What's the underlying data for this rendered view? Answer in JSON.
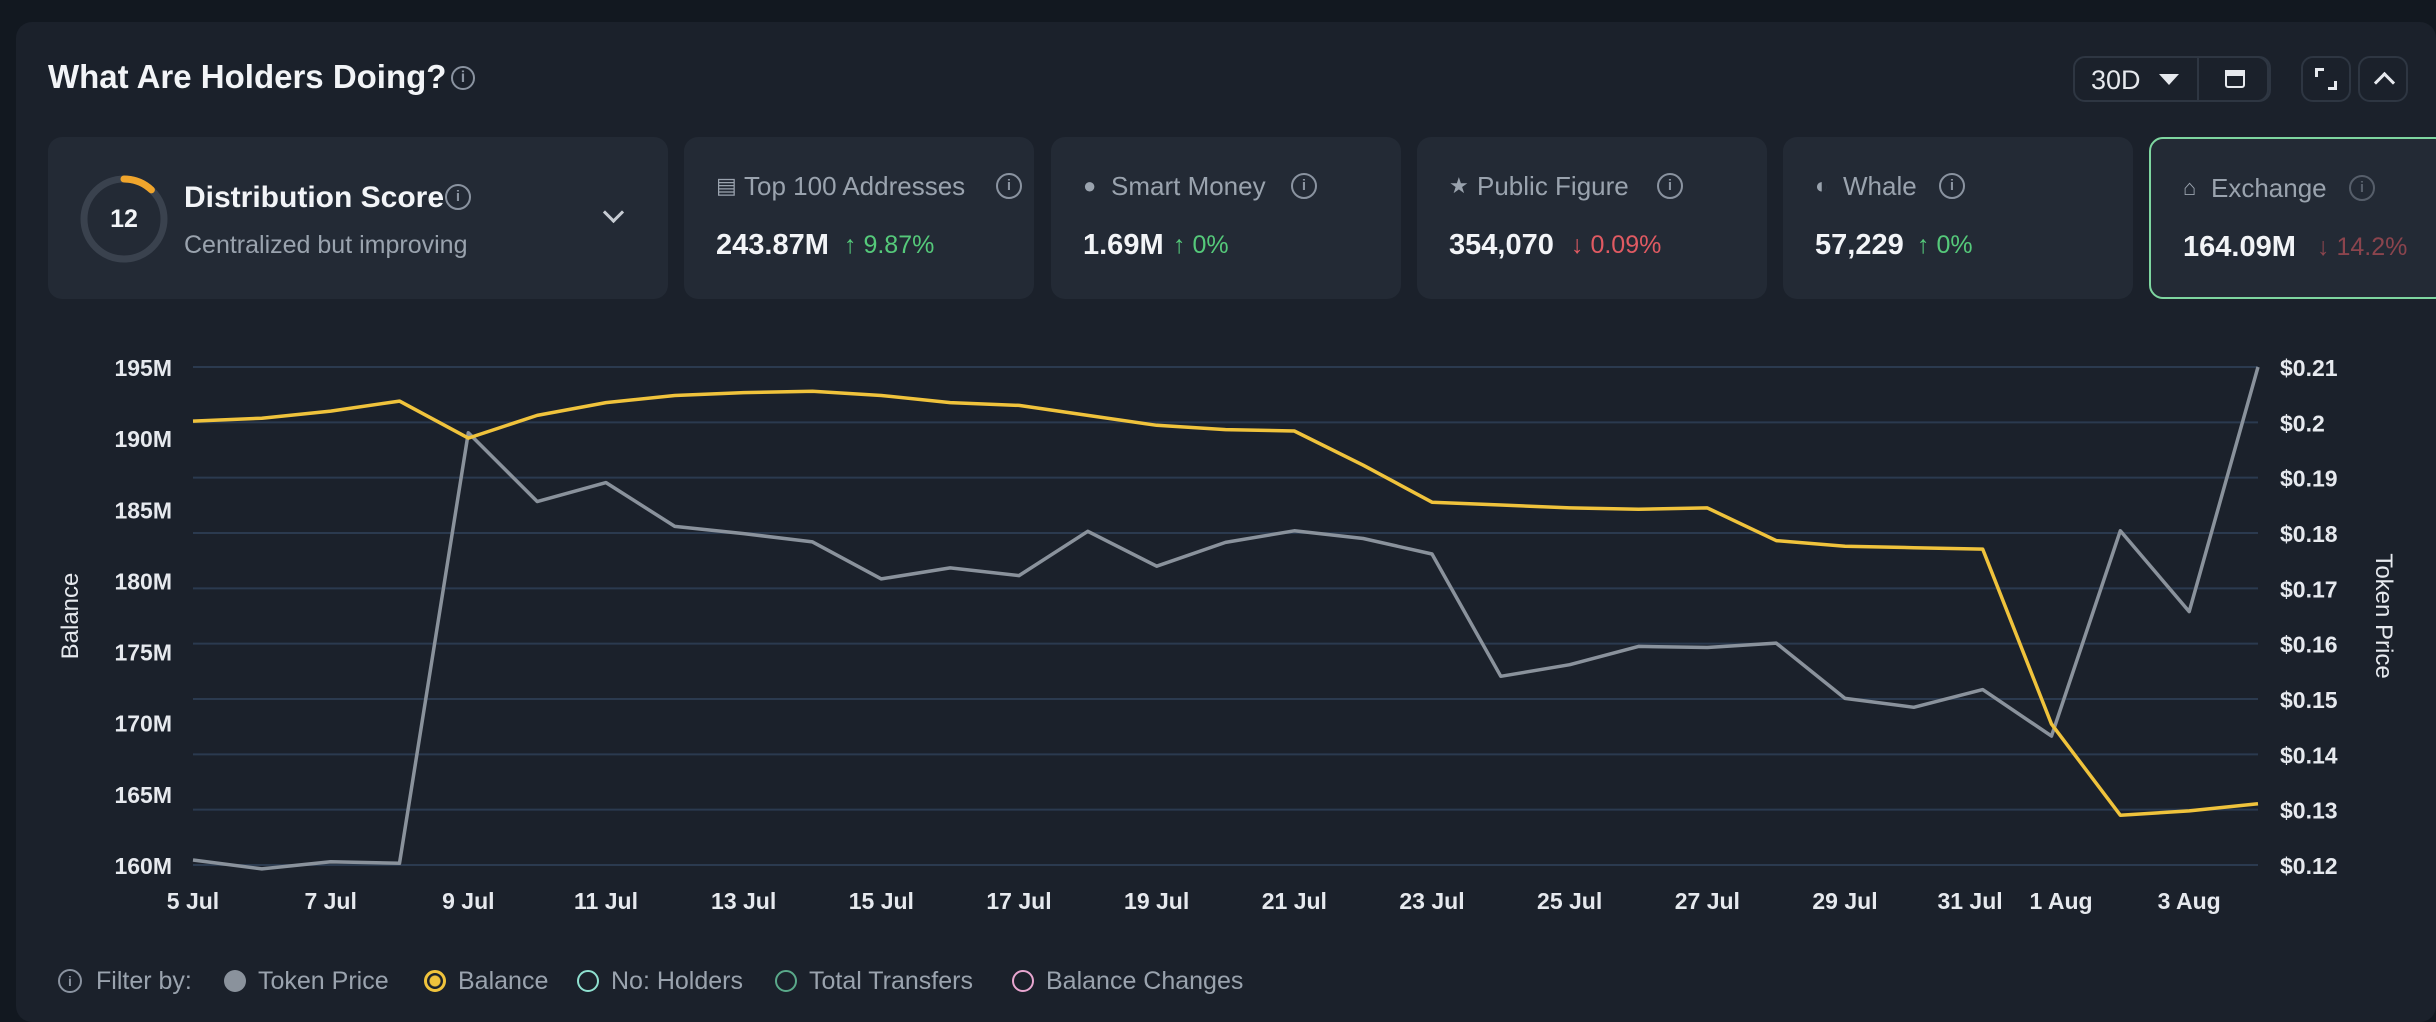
{
  "header": {
    "title": "What Are Holders Doing?",
    "range": "30D"
  },
  "score_card": {
    "score": "12",
    "title": "Distribution Score",
    "subtitle": "Centralized but improving",
    "score_fraction": 0.12
  },
  "metrics": [
    {
      "label": "Top 100 Addresses",
      "value": "243.87M",
      "change": "9.87%",
      "direction": "up",
      "icon": "wallet-icon"
    },
    {
      "label": "Smart Money",
      "value": "1.69M",
      "change": "0%",
      "direction": "up",
      "icon": "smart-money-icon"
    },
    {
      "label": "Public Figure",
      "value": "354,070",
      "change": "0.09%",
      "direction": "down",
      "icon": "public-figure-icon"
    },
    {
      "label": "Whale",
      "value": "57,229",
      "change": "0%",
      "direction": "up",
      "icon": "whale-icon"
    },
    {
      "label": "Exchange",
      "value": "164.09M",
      "change": "14.2%",
      "direction": "down",
      "icon": "bank-icon"
    }
  ],
  "legend": {
    "filter_label": "Filter by:",
    "items": [
      {
        "label": "Token Price",
        "state": "on",
        "color": "#8a929c"
      },
      {
        "label": "Balance",
        "state": "selected",
        "color": "#f0c33c"
      },
      {
        "label": "No: Holders",
        "state": "off",
        "color": "#8fe0d0"
      },
      {
        "label": "Total Transfers",
        "state": "off",
        "color": "#5aa98a"
      },
      {
        "label": "Balance Changes",
        "state": "off",
        "color": "#e8a6d0"
      }
    ]
  },
  "chart_data": {
    "type": "line",
    "xlabel": "",
    "ylabel": "Balance",
    "y2label": "Token Price",
    "x_tick_labels": [
      "5 Jul",
      "7 Jul",
      "9 Jul",
      "11 Jul",
      "13 Jul",
      "15 Jul",
      "17 Jul",
      "19 Jul",
      "21 Jul",
      "23 Jul",
      "25 Jul",
      "27 Jul",
      "29 Jul",
      "31 Jul",
      "1 Aug",
      "3 Aug"
    ],
    "x_tick_index": [
      0,
      2,
      4,
      6,
      8,
      10,
      12,
      14,
      16,
      18,
      20,
      22,
      24,
      26,
      27,
      29
    ],
    "x": [
      "5 Jul",
      "6 Jul",
      "7 Jul",
      "8 Jul",
      "9 Jul",
      "10 Jul",
      "11 Jul",
      "12 Jul",
      "13 Jul",
      "14 Jul",
      "15 Jul",
      "16 Jul",
      "17 Jul",
      "18 Jul",
      "19 Jul",
      "20 Jul",
      "21 Jul",
      "22 Jul",
      "23 Jul",
      "24 Jul",
      "25 Jul",
      "26 Jul",
      "27 Jul",
      "28 Jul",
      "29 Jul",
      "30 Jul",
      "31 Jul",
      "1 Aug",
      "2 Aug",
      "3 Aug",
      "4 Aug"
    ],
    "ylim": [
      160,
      195
    ],
    "yticks": [
      "160M",
      "165M",
      "170M",
      "175M",
      "180M",
      "185M",
      "190M",
      "195M"
    ],
    "y2lim": [
      0.12,
      0.21
    ],
    "y2ticks": [
      "$0.12",
      "$0.13",
      "$0.14",
      "$0.15",
      "$0.16",
      "$0.17",
      "$0.18",
      "$0.19",
      "$0.2",
      "$0.21"
    ],
    "grid": true,
    "series": [
      {
        "name": "Balance",
        "axis": "left",
        "color": "#f0c33c",
        "values": [
          191.2,
          191.4,
          191.9,
          192.6,
          190.0,
          191.6,
          192.5,
          193.0,
          193.2,
          193.3,
          193.0,
          192.5,
          192.3,
          191.6,
          190.9,
          190.6,
          190.5,
          188.1,
          185.5,
          185.3,
          185.1,
          185.0,
          185.1,
          182.8,
          182.4,
          182.3,
          182.2,
          169.9,
          163.5,
          163.8,
          164.3
        ]
      },
      {
        "name": "Token Price",
        "axis": "right",
        "color": "#8a929c",
        "values": [
          0.1209,
          0.1193,
          0.1206,
          0.1203,
          0.1981,
          0.1857,
          0.1891,
          0.1812,
          0.1799,
          0.1784,
          0.1717,
          0.1737,
          0.1723,
          0.1803,
          0.174,
          0.1783,
          0.1804,
          0.179,
          0.1762,
          0.1541,
          0.1562,
          0.1595,
          0.1593,
          0.1601,
          0.1501,
          0.1485,
          0.1517,
          0.1433,
          0.1804,
          0.1658,
          0.21
        ]
      }
    ]
  }
}
